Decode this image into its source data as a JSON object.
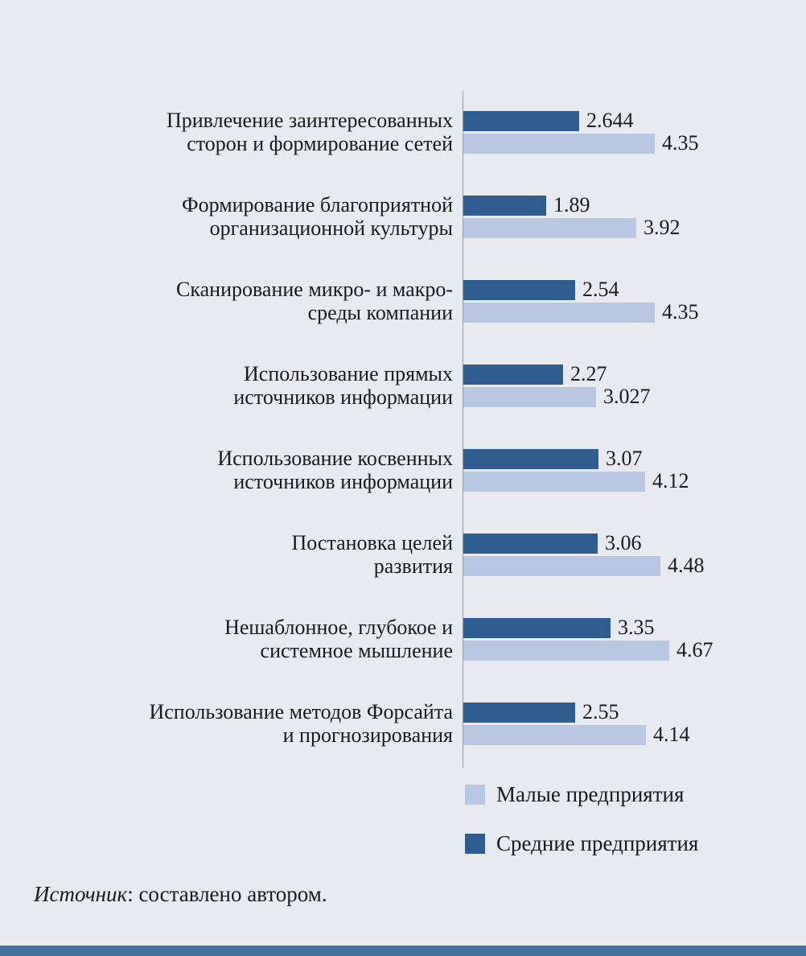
{
  "colors": {
    "background": "#e8eaef",
    "axis": "#9aa0aa",
    "bottom_strip": "#44719f"
  },
  "chart_data": {
    "type": "bar",
    "orientation": "horizontal",
    "title": "",
    "xlabel": "",
    "ylabel": "",
    "xlim": [
      0,
      5
    ],
    "grid": false,
    "legend_position": "bottom-right",
    "categories": [
      "Привлечение заинтересованных\nсторон и формирование сетей",
      "Формирование благоприятной\nорганизационной культуры",
      "Сканирование микро- и макро-\nсреды компании",
      "Использование прямых\nисточников информации",
      "Использование косвенных\nисточников информации",
      "Постановка целей\nразвития",
      "Нешаблонное, глубокое и\nсистемное мышление",
      "Использование методов Форсайта\nи прогнозирования"
    ],
    "series": [
      {
        "name": "Средние предприятия",
        "key": "medium-enterprises",
        "color": "#305d90",
        "values": [
          2.644,
          1.89,
          2.54,
          2.27,
          3.07,
          3.06,
          3.35,
          2.55
        ],
        "value_labels": [
          "2.644",
          "1.89",
          "2.54",
          "2.27",
          "3.07",
          "3.06",
          "3.35",
          "2.55"
        ]
      },
      {
        "name": "Малые предприятия",
        "key": "small-enterprises",
        "color": "#b9c8e2",
        "values": [
          4.35,
          3.92,
          4.35,
          3.027,
          4.12,
          4.48,
          4.67,
          4.14
        ],
        "value_labels": [
          "4.35",
          "3.92",
          "4.35",
          "3.027",
          "4.12",
          "4.48",
          "4.67",
          "4.14"
        ]
      }
    ]
  },
  "legend": {
    "items": [
      {
        "label": "Малые предприятия",
        "color": "#b9c8e2"
      },
      {
        "label": "Средние предприятия",
        "color": "#305d90"
      }
    ]
  },
  "source": {
    "italic": "Источник",
    "rest": ": составлено автором."
  }
}
